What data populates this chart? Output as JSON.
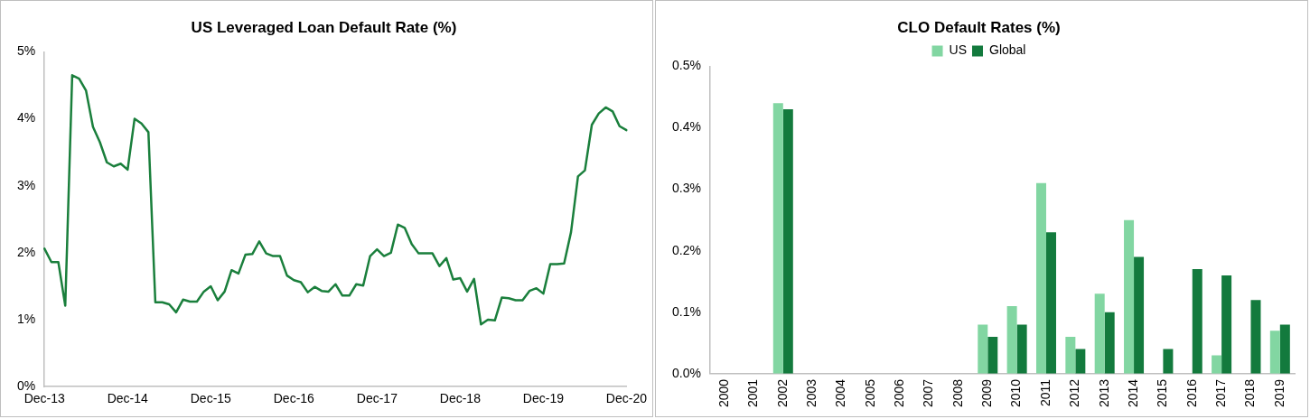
{
  "chart_data": [
    {
      "type": "line",
      "title": "US Leveraged Loan Default Rate (%)",
      "categories": [
        "Dec-13",
        null,
        null,
        null,
        null,
        null,
        null,
        null,
        null,
        null,
        null,
        null,
        "Dec-14",
        null,
        null,
        null,
        null,
        null,
        null,
        null,
        null,
        null,
        null,
        null,
        "Dec-15",
        null,
        null,
        null,
        null,
        null,
        null,
        null,
        null,
        null,
        null,
        null,
        "Dec-16",
        null,
        null,
        null,
        null,
        null,
        null,
        null,
        null,
        null,
        null,
        null,
        "Dec-17",
        null,
        null,
        null,
        null,
        null,
        null,
        null,
        null,
        null,
        null,
        null,
        "Dec-18",
        null,
        null,
        null,
        null,
        null,
        null,
        null,
        null,
        null,
        null,
        null,
        "Dec-19",
        null,
        null,
        null,
        null,
        null,
        null,
        null,
        null,
        null,
        null,
        null,
        "Dec-20"
      ],
      "series": [
        {
          "color": "#1a7f3c",
          "values": [
            2.06,
            1.86,
            1.86,
            1.21,
            4.65,
            4.6,
            4.42,
            3.88,
            3.65,
            3.35,
            3.29,
            3.33,
            3.24,
            4.0,
            3.93,
            3.8,
            1.26,
            1.26,
            1.23,
            1.11,
            1.3,
            1.27,
            1.27,
            1.42,
            1.5,
            1.29,
            1.42,
            1.74,
            1.69,
            1.97,
            1.98,
            2.17,
            1.99,
            1.95,
            1.95,
            1.66,
            1.59,
            1.56,
            1.41,
            1.49,
            1.43,
            1.42,
            1.53,
            1.36,
            1.36,
            1.53,
            1.51,
            1.95,
            2.05,
            1.95,
            2.0,
            2.42,
            2.37,
            2.13,
            1.99,
            1.99,
            1.99,
            1.8,
            1.92,
            1.6,
            1.62,
            1.42,
            1.61,
            0.93,
            1.0,
            0.99,
            1.33,
            1.32,
            1.29,
            1.29,
            1.43,
            1.47,
            1.39,
            1.83,
            1.83,
            1.84,
            2.31,
            3.14,
            3.23,
            3.91,
            4.08,
            4.17,
            4.11,
            3.89,
            3.83
          ]
        }
      ],
      "ylim": [
        0,
        5
      ],
      "yticks": [
        {
          "value": 0,
          "label": "0%"
        },
        {
          "value": 1,
          "label": "1%"
        },
        {
          "value": 2,
          "label": "2%"
        },
        {
          "value": 3,
          "label": "3%"
        },
        {
          "value": 4,
          "label": "4%"
        },
        {
          "value": 5,
          "label": "5%"
        }
      ],
      "grid": false,
      "legend": false,
      "marker": "none",
      "line_style": "solid"
    },
    {
      "type": "bar",
      "title": "CLO Default Rates (%)",
      "categories": [
        "2000",
        "2001",
        "2002",
        "2003",
        "2004",
        "2005",
        "2006",
        "2007",
        "2008",
        "2009",
        "2010",
        "2011",
        "2012",
        "2013",
        "2014",
        "2015",
        "2016",
        "2017",
        "2018",
        "2019"
      ],
      "series": [
        {
          "name": "US",
          "color": "#82d6a2",
          "values": [
            0,
            0,
            0.44,
            0,
            0,
            0,
            0,
            0,
            0,
            0.08,
            0.11,
            0.31,
            0.06,
            0.13,
            0.25,
            0,
            0,
            0.03,
            0,
            0.07
          ]
        },
        {
          "name": "Global",
          "color": "#137a3d",
          "values": [
            0,
            0,
            0.43,
            0,
            0,
            0,
            0,
            0,
            0,
            0.06,
            0.08,
            0.23,
            0.04,
            0.1,
            0.19,
            0.04,
            0.17,
            0.16,
            0.12,
            0.08
          ]
        }
      ],
      "ylim": [
        0,
        0.5
      ],
      "yticks": [
        {
          "value": 0,
          "label": "0.0%"
        },
        {
          "value": 0.1,
          "label": "0.1%"
        },
        {
          "value": 0.2,
          "label": "0.2%"
        },
        {
          "value": 0.3,
          "label": "0.3%"
        },
        {
          "value": 0.4,
          "label": "0.4%"
        },
        {
          "value": 0.5,
          "label": "0.5%"
        }
      ],
      "grid": false,
      "legend": "top"
    }
  ]
}
